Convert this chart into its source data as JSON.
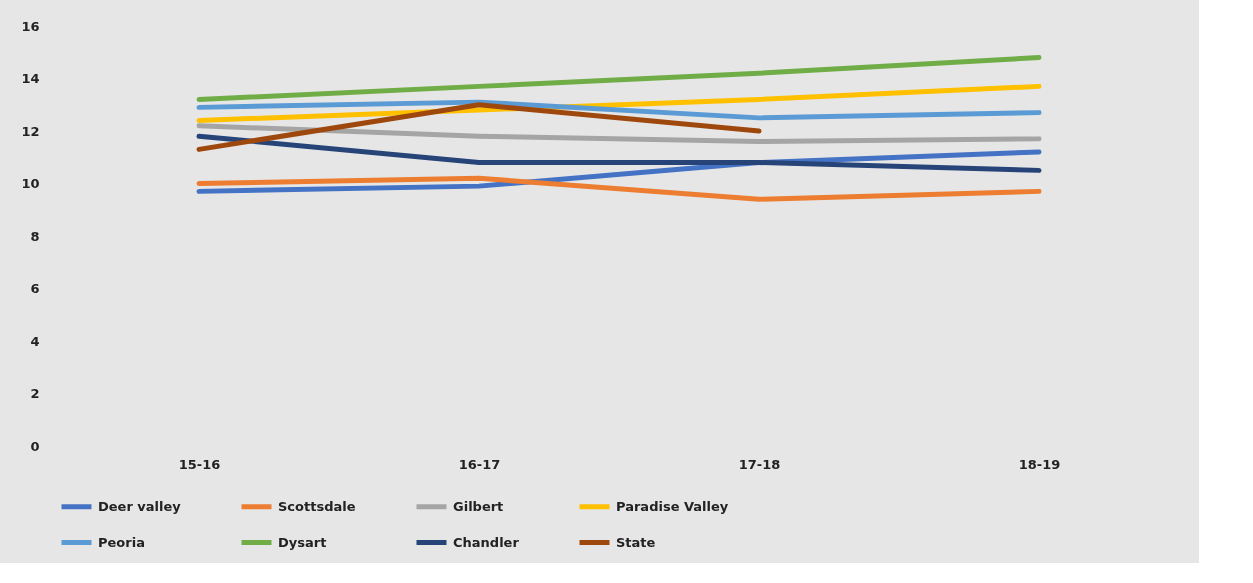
{
  "chart_data": {
    "type": "line",
    "categories": [
      "15-16",
      "16-17",
      "17-18",
      "18-19"
    ],
    "series": [
      {
        "name": "Deer valley",
        "color": "#4472c4",
        "values": [
          9.7,
          9.9,
          10.8,
          11.2
        ]
      },
      {
        "name": "Scottsdale",
        "color": "#ed7d31",
        "values": [
          10.0,
          10.2,
          9.4,
          9.7
        ]
      },
      {
        "name": "Gilbert",
        "color": "#a5a5a5",
        "values": [
          12.2,
          11.8,
          11.6,
          11.7
        ]
      },
      {
        "name": "Paradise Valley",
        "color": "#ffc000",
        "values": [
          12.4,
          12.8,
          13.2,
          13.7
        ]
      },
      {
        "name": "Peoria",
        "color": "#5b9bd5",
        "values": [
          12.9,
          13.1,
          12.5,
          12.7
        ]
      },
      {
        "name": "Dysart",
        "color": "#70ad47",
        "values": [
          13.2,
          13.7,
          14.2,
          14.8
        ]
      },
      {
        "name": "Chandler",
        "color": "#264478",
        "values": [
          11.8,
          10.8,
          10.8,
          10.5
        ]
      },
      {
        "name": "State",
        "color": "#9e480e",
        "values": [
          11.3,
          13.0,
          12.0,
          null
        ]
      }
    ],
    "ylim": [
      0,
      16
    ],
    "yticks": [
      0,
      2,
      4,
      6,
      8,
      10,
      12,
      14,
      16
    ],
    "grid": false,
    "legend": "bottom",
    "marker": "none",
    "line_style": "solid"
  }
}
